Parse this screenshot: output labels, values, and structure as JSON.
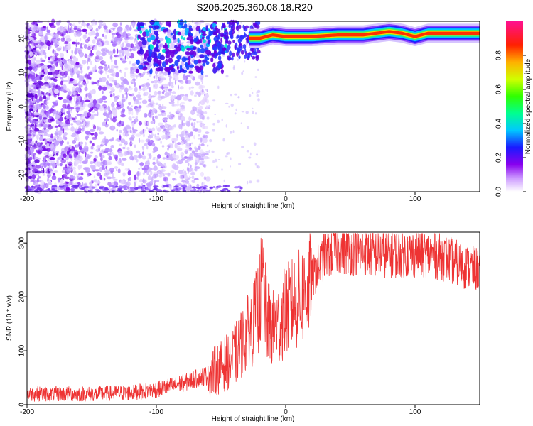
{
  "title": "S206.2025.360.08.18.R20",
  "chart_data": [
    {
      "type": "heatmap",
      "xlabel": "Height of straight line (km)",
      "ylabel": "Frequency (Hz)",
      "xlim": [
        -200,
        150
      ],
      "ylim": [
        -25,
        25
      ],
      "x_ticks": [
        -200,
        -100,
        0,
        100
      ],
      "y_ticks": [
        -20,
        -10,
        0,
        10,
        20
      ],
      "colorbar": {
        "label": "Normalized spectral amplitude",
        "range": [
          0,
          1
        ],
        "ticks": [
          "0.0",
          "0.2",
          "0.4",
          "0.6",
          "0.8"
        ],
        "colormap": "white-purple-blue-cyan-green-yellow-red-magenta"
      },
      "ridge": {
        "description_points_x": [
          -20,
          -10,
          0,
          20,
          40,
          60,
          80,
          90,
          100,
          110,
          130,
          150
        ],
        "description_points_y": [
          20,
          21,
          20.5,
          20.5,
          21,
          21,
          22,
          21.5,
          20.5,
          21.5,
          21.5,
          21.5
        ]
      }
    },
    {
      "type": "line",
      "xlabel": "Height of straight line (km)",
      "ylabel": "SNR (10 * v/v)",
      "xlim": [
        -200,
        150
      ],
      "ylim": [
        0,
        320
      ],
      "x_ticks": [
        -200,
        -100,
        0,
        100
      ],
      "y_ticks": [
        0,
        100,
        200,
        300
      ],
      "line_color": "#ee3333",
      "trend_x": [
        -200,
        -150,
        -120,
        -100,
        -80,
        -60,
        -50,
        -40,
        -35,
        -30,
        -25,
        -20,
        -18,
        -15,
        -10,
        -5,
        0,
        5,
        10,
        15,
        20,
        25,
        30,
        40,
        50,
        70,
        100,
        120,
        130,
        140,
        150
      ],
      "trend_y": [
        20,
        20,
        22,
        28,
        40,
        55,
        70,
        90,
        110,
        130,
        150,
        190,
        250,
        160,
        140,
        150,
        175,
        185,
        195,
        210,
        230,
        255,
        275,
        288,
        285,
        280,
        280,
        275,
        265,
        255,
        250
      ]
    }
  ]
}
